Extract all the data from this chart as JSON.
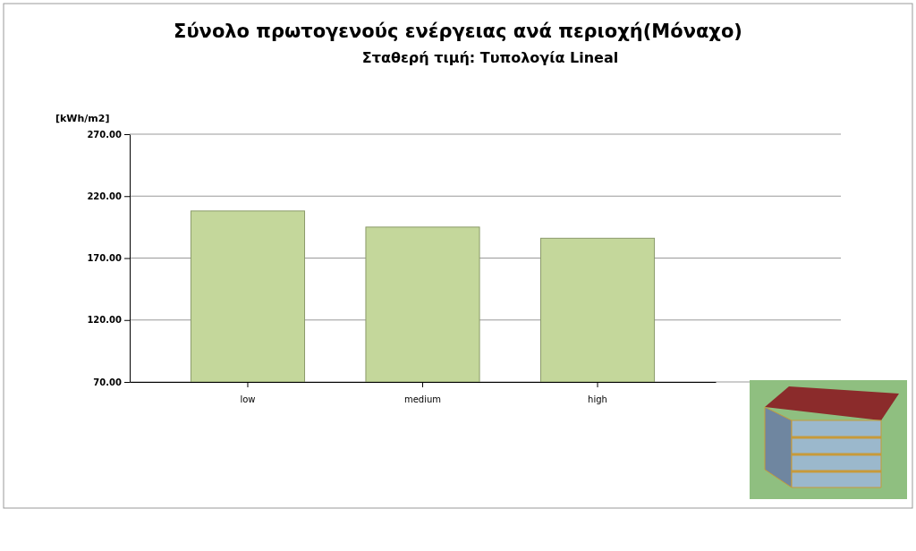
{
  "chart_data": {
    "type": "bar",
    "title": "Σύνολο πρωτογενούς ενέργειας ανά περιοχή(Μόναχο)",
    "subtitle": "Σταθερή τιμή: Τυπολογία Lineal",
    "ylabel": "[kWh/m2]",
    "categories": [
      "low",
      "medium",
      "high"
    ],
    "values": [
      208,
      195,
      186
    ],
    "color": "#c4d79b",
    "ylim": [
      70,
      270
    ],
    "yticks": [
      {
        "value": 70,
        "label": "70.00"
      },
      {
        "value": 120,
        "label": "120.00"
      },
      {
        "value": 170,
        "label": "170.00"
      },
      {
        "value": 220,
        "label": "220.00"
      },
      {
        "value": 270,
        "label": "270.00"
      }
    ],
    "grid": "y"
  }
}
